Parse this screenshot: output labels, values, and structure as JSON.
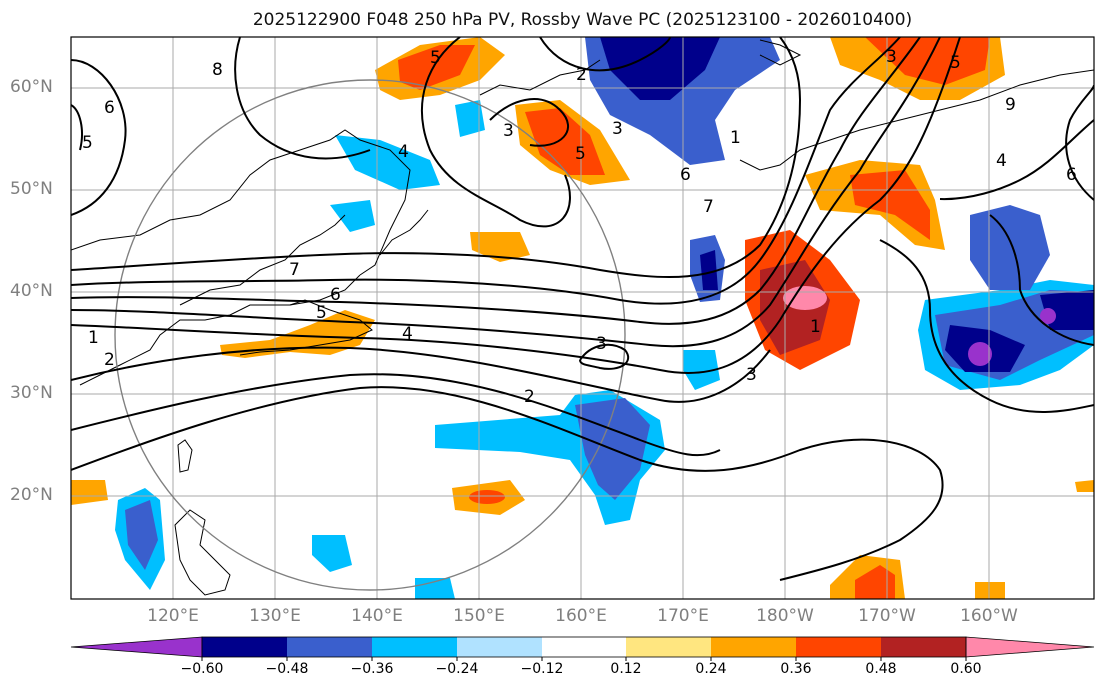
{
  "title": "2025122900 F048 250 hPa PV, Rossby Wave PC (2025123100 - 2026010400)",
  "map": {
    "latitude_labels": [
      "60°N",
      "50°N",
      "40°N",
      "30°N",
      "20°N"
    ],
    "longitude_labels": [
      "120°E",
      "130°E",
      "140°E",
      "150°E",
      "160°E",
      "170°E",
      "180°W",
      "170°W",
      "160°W"
    ],
    "contour_labels": [
      "8",
      "6",
      "5",
      "5",
      "3",
      "5",
      "4",
      "7",
      "6",
      "5",
      "4",
      "2",
      "1",
      "3",
      "2",
      "3",
      "1",
      "6",
      "7",
      "1",
      "3",
      "2",
      "4",
      "9",
      "6",
      "5",
      "3"
    ]
  },
  "colorbar": {
    "ticks": [
      "−0.60",
      "−0.48",
      "−0.36",
      "−0.24",
      "−0.12",
      "0.12",
      "0.24",
      "0.36",
      "0.48",
      "0.60"
    ],
    "colors": [
      "#9932cc",
      "#00008b",
      "#3a5fcd",
      "#00bfff",
      "#b0e2ff",
      "#ffffff",
      "#ffe680",
      "#ffa500",
      "#ff4500",
      "#b22222",
      "#ff88aa"
    ]
  }
}
